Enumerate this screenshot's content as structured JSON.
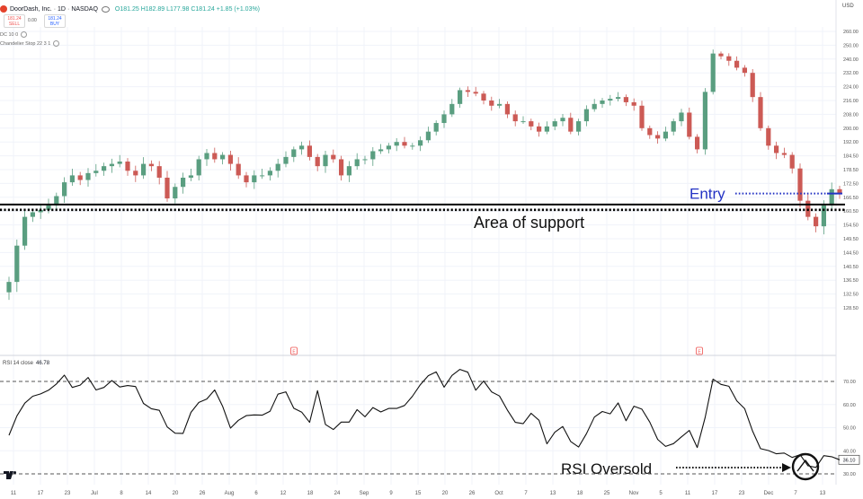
{
  "header": {
    "symbol_title": "DoorDash, Inc.",
    "interval": "1D",
    "exchange": "NASDAQ",
    "ohlc": "O181.25 H182.89 L177.98 C181.24 +1.85 (+1.03%)",
    "sell_price": "181.24",
    "sell_label": "SELL",
    "spread": "0.00",
    "buy_price": "181.24",
    "buy_label": "BUY",
    "indicator_1": "DC 10 0",
    "indicator_2": "Chandelier Stop 22 3 1",
    "currency": "USD",
    "rsi_label": "RSI 14 close",
    "rsi_value": "46.78",
    "rsi_last_badge": "36.10"
  },
  "annotations": {
    "entry": "Entry",
    "support": "Area of support",
    "rsi": "RSI Oversold"
  },
  "colors": {
    "up": "#5a9e80",
    "down": "#cc5a55",
    "entry": "#2433c4",
    "grid": "#f0f3fa"
  },
  "chart_data": [
    {
      "type": "candlestick",
      "title": "DoorDash, Inc. · 1D · NASDAQ",
      "y_axis_ticks": [
        260.0,
        250.0,
        240.0,
        232.0,
        224.0,
        216.0,
        208.0,
        200.0,
        192.0,
        184.5,
        178.5,
        172.5,
        166.5,
        160.5,
        154.5,
        149.5,
        144.5,
        140.5,
        136.5,
        132.5,
        128.5
      ],
      "x_axis_ticks": [
        "11",
        "17",
        "23",
        "Jul",
        "8",
        "14",
        "20",
        "26",
        "Aug",
        "6",
        "12",
        "18",
        "24",
        "Sep",
        "9",
        "15",
        "20",
        "26",
        "Oct",
        "7",
        "13",
        "18",
        "25",
        "Nov",
        "5",
        "11",
        "17",
        "23",
        "Dec",
        "7",
        "13"
      ],
      "support_level": 162.2,
      "entry_level": 168.5,
      "closes": [
        136,
        147,
        158,
        160,
        161,
        163,
        167,
        173,
        176,
        174,
        177,
        178,
        180,
        181,
        182,
        178,
        176,
        181,
        180,
        175,
        166,
        171,
        175,
        176,
        183,
        186,
        183,
        185,
        181,
        176,
        173,
        176,
        176,
        178,
        181,
        184,
        188,
        190,
        184,
        180,
        185,
        183,
        176,
        180,
        183,
        183,
        187,
        188,
        190,
        192,
        190,
        190,
        193,
        198,
        203,
        208,
        214,
        222,
        221,
        220,
        216,
        213,
        214,
        208,
        204,
        204,
        201,
        198,
        201,
        204,
        206,
        198,
        204,
        211,
        214,
        216,
        217,
        218,
        215,
        213,
        200,
        196,
        194,
        198,
        204,
        209,
        195,
        188,
        221,
        244,
        242,
        239,
        235,
        232,
        218,
        200,
        190,
        186,
        185,
        179,
        165,
        158,
        154,
        163,
        170,
        168
      ]
    },
    {
      "type": "line",
      "title": "RSI 14 close",
      "y_axis_ticks": [
        70.0,
        60.0,
        50.0,
        40.0,
        30.0
      ],
      "overbought": 70,
      "oversold": 30,
      "last_value": 36.1,
      "values": [
        46.7,
        55.1,
        60.6,
        63.6,
        64.6,
        66.2,
        68.9,
        72.7,
        67.4,
        68.4,
        71.7,
        66.3,
        67.4,
        70.4,
        67.6,
        68.2,
        67.8,
        60.5,
        58.2,
        57.5,
        50.3,
        47.6,
        47.5,
        56.6,
        60.9,
        62.4,
        66.3,
        59.3,
        49.8,
        53.2,
        55.2,
        55.5,
        55.4,
        57.1,
        64.5,
        65.5,
        58.4,
        56.7,
        52.3,
        66.0,
        51.4,
        49.2,
        52.4,
        52.4,
        57.8,
        54.7,
        58.7,
        56.8,
        58.3,
        58.3,
        59.6,
        63.6,
        68.6,
        72.5,
        74.1,
        67.5,
        72.6,
        75.2,
        74.0,
        66.2,
        70.2,
        65.5,
        63.7,
        57.6,
        52.3,
        51.7,
        56.2,
        53.2,
        43.0,
        48.0,
        50.5,
        44.0,
        41.6,
        47.4,
        54.6,
        57.0,
        56.0,
        60.7,
        53.0,
        59.3,
        58.0,
        52.4,
        44.9,
        41.9,
        43.1,
        46.0,
        48.8,
        41.4,
        54.4,
        71.0,
        68.7,
        67.9,
        61.6,
        58.2,
        48.5,
        40.9,
        40.1,
        38.7,
        39.0,
        37.1,
        38.3,
        33.5,
        32.8,
        37.9,
        37.4,
        36.1
      ]
    }
  ]
}
